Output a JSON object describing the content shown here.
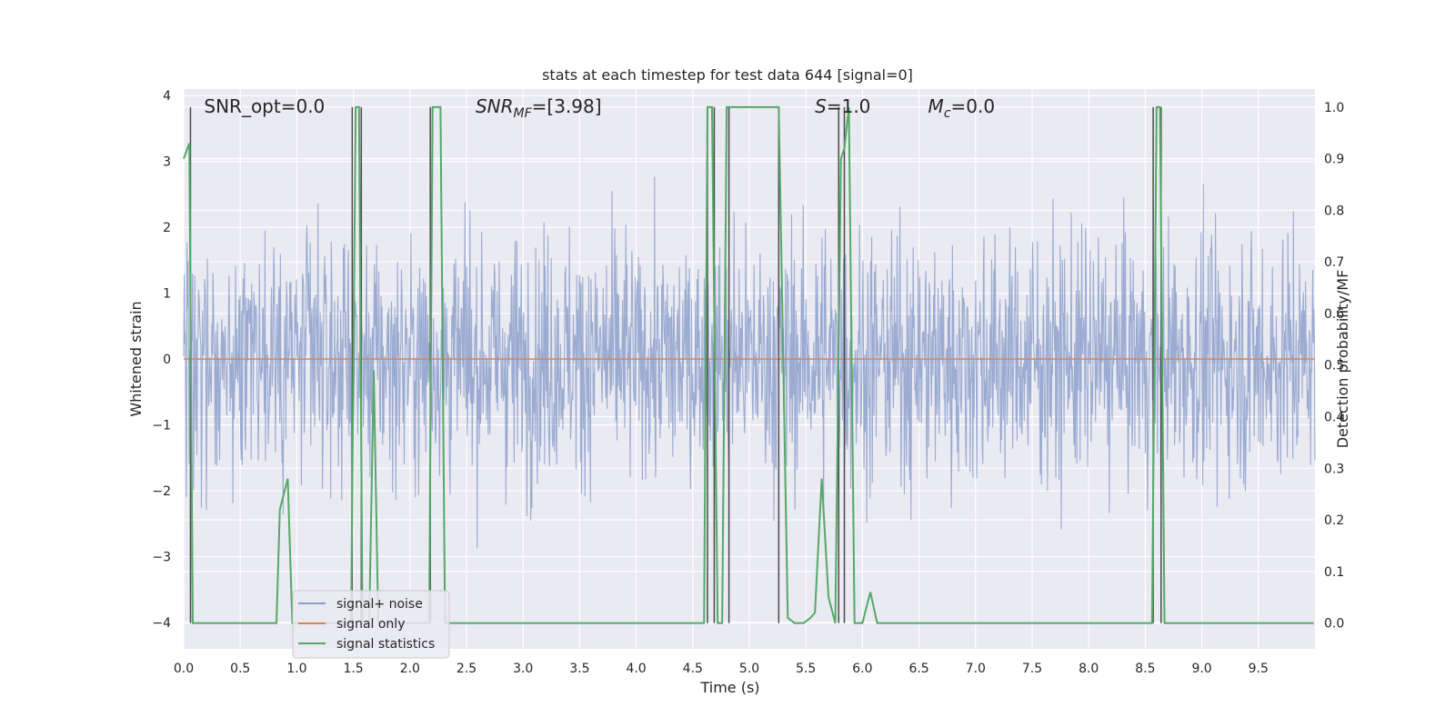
{
  "chart_data": {
    "type": "line",
    "title": "stats at each timestep for test data 644 [signal=0]",
    "xlabel": "Time (s)",
    "ylabel_left": "Whitened strain",
    "ylabel_right": "Detection probability/MF",
    "xlim": [
      0.0,
      10.0
    ],
    "ylim_left": [
      -4.4,
      4.1
    ],
    "ylim_right": [
      -0.05,
      1.035
    ],
    "x_ticks": [
      "0.0",
      "0.5",
      "1.0",
      "1.5",
      "2.0",
      "2.5",
      "3.0",
      "3.5",
      "4.0",
      "4.5",
      "5.0",
      "5.5",
      "6.0",
      "6.5",
      "7.0",
      "7.5",
      "8.0",
      "8.5",
      "9.0",
      "9.5"
    ],
    "x_tick_values": [
      0.0,
      0.5,
      1.0,
      1.5,
      2.0,
      2.5,
      3.0,
      3.5,
      4.0,
      4.5,
      5.0,
      5.5,
      6.0,
      6.5,
      7.0,
      7.5,
      8.0,
      8.5,
      9.0,
      9.5
    ],
    "y_ticks_left": [
      "4",
      "3",
      "2",
      "1",
      "0",
      "−1",
      "−2",
      "−3",
      "−4"
    ],
    "y_tick_values_left": [
      4,
      3,
      2,
      1,
      0,
      -1,
      -2,
      -3,
      -4
    ],
    "y_ticks_right": [
      "1.0",
      "0.9",
      "0.8",
      "0.7",
      "0.6",
      "0.5",
      "0.4",
      "0.3",
      "0.2",
      "0.1",
      "0.0"
    ],
    "y_tick_values_right": [
      1.0,
      0.9,
      0.8,
      0.7,
      0.6,
      0.5,
      0.4,
      0.3,
      0.2,
      0.1,
      0.0
    ],
    "grid": true,
    "legend_position": "lower-left",
    "annotations": [
      {
        "text": "SNR_opt=0.0",
        "x": 0.18
      },
      {
        "text": "SNR_MF=[3.98]",
        "x": 2.58,
        "italic_prefix": "SNR",
        "subscript": "MF",
        "suffix": "=[3.98]"
      },
      {
        "text": "S=1.0",
        "x": 5.58,
        "italic_prefix": "S",
        "suffix": "=1.0"
      },
      {
        "text": "M_c=0.0",
        "x": 6.58,
        "italic_prefix": "M",
        "subscript": "c",
        "suffix": "=0.0"
      }
    ],
    "series": [
      {
        "name": "signal+ noise",
        "color": "#8da0cb",
        "kind": "noise",
        "amplitude": 1.0,
        "n_points": 2048
      },
      {
        "name": "signal only",
        "color": "#dd8452",
        "values_constant": 0.0
      },
      {
        "name": "signal statistics",
        "color": "#55a868",
        "x": [
          0.0,
          0.05,
          0.08,
          0.18,
          0.82,
          0.85,
          0.92,
          0.96,
          1.0,
          1.48,
          1.52,
          1.55,
          1.58,
          1.64,
          1.68,
          1.72,
          1.78,
          2.17,
          2.2,
          2.23,
          2.27,
          2.31,
          2.34,
          2.38,
          4.6,
          4.63,
          4.67,
          4.72,
          4.76,
          4.8,
          4.87,
          5.26,
          5.34,
          5.4,
          5.48,
          5.54,
          5.58,
          5.64,
          5.7,
          5.76,
          5.81,
          5.84,
          5.88,
          5.93,
          6.0,
          6.07,
          6.13,
          6.2,
          6.25,
          6.3,
          6.35,
          8.56,
          8.6,
          8.63,
          8.67,
          8.73,
          9.99
        ],
        "y": [
          0.9,
          0.93,
          0.0,
          0.0,
          0.0,
          0.22,
          0.28,
          0.0,
          0.0,
          0.0,
          1.0,
          1.0,
          0.0,
          0.0,
          0.49,
          0.0,
          0.0,
          0.0,
          1.0,
          1.0,
          1.0,
          0.0,
          0.0,
          0.0,
          0.0,
          1.0,
          1.0,
          0.0,
          0.0,
          1.0,
          1.0,
          1.0,
          0.01,
          0.0,
          0.0,
          0.01,
          0.02,
          0.28,
          0.05,
          0.0,
          0.9,
          0.92,
          1.0,
          0.0,
          0.0,
          0.06,
          0.0,
          0.0,
          0.0,
          0.0,
          0.0,
          0.0,
          1.0,
          1.0,
          0.0,
          0.0,
          0.0
        ]
      },
      {
        "name": "",
        "color": "#4a4a4a",
        "kind": "vlines",
        "x": [
          0.06,
          1.49,
          1.57,
          2.18,
          4.63,
          4.69,
          4.82,
          5.26,
          5.79,
          5.84,
          8.57,
          8.64
        ]
      }
    ]
  },
  "legend": {
    "items": [
      "signal+ noise",
      "signal only",
      "signal statistics"
    ],
    "colors": [
      "#8da0cb",
      "#dd8452",
      "#55a868"
    ]
  },
  "colors": {
    "plot_background": "#eaeaf2",
    "grid": "#ffffff"
  }
}
